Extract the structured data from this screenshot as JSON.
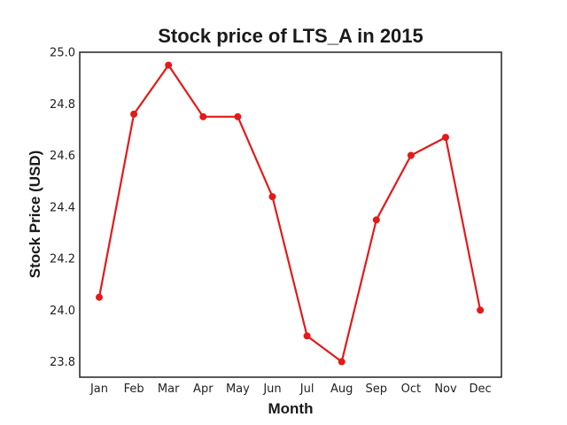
{
  "chart_data": {
    "type": "line",
    "title": "Stock price of LTS_A in 2015",
    "xlabel": "Month",
    "ylabel": "Stock Price (USD)",
    "categories": [
      "Jan",
      "Feb",
      "Mar",
      "Apr",
      "May",
      "Jun",
      "Jul",
      "Aug",
      "Sep",
      "Oct",
      "Nov",
      "Dec"
    ],
    "series": [
      {
        "values": [
          24.05,
          24.76,
          24.95,
          24.75,
          24.75,
          24.44,
          23.9,
          23.8,
          24.35,
          24.6,
          24.67,
          24.0
        ]
      }
    ],
    "ylim": [
      23.74,
      25.0
    ],
    "yticks": [
      "23.8",
      "24.0",
      "24.2",
      "24.4",
      "24.6",
      "24.8",
      "25.0"
    ],
    "grid": false,
    "line_color": "#e31a1a",
    "marker": "circle"
  }
}
